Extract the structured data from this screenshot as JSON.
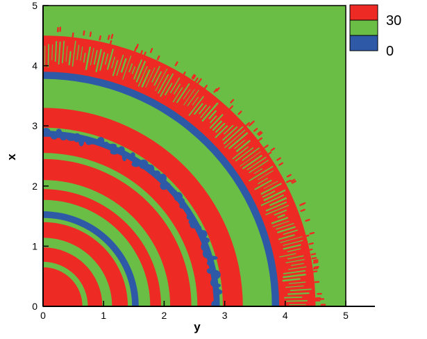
{
  "chart_data": {
    "type": "heatmap",
    "xlabel": "y",
    "ylabel": "x",
    "xlim": [
      0,
      5
    ],
    "ylim": [
      0,
      5
    ],
    "x_ticks": [
      "0",
      "1",
      "2",
      "3",
      "4",
      "5"
    ],
    "y_ticks": [
      "0",
      "1",
      "2",
      "3",
      "4",
      "5"
    ],
    "legend": {
      "placement": "top-right",
      "entries": [
        {
          "label": "30",
          "color": "#ee2a24"
        },
        {
          "label": "",
          "color": "#6abd45"
        },
        {
          "label": "0",
          "color": "#2e59a6"
        }
      ]
    },
    "colors": {
      "high": "#ee2a24",
      "mid": "#6abd45",
      "low": "#2e59a6"
    },
    "rings": [
      {
        "r_inner": 0.0,
        "r_outer": 0.65,
        "level": "high"
      },
      {
        "r_inner": 0.65,
        "r_outer": 0.74,
        "level": "mid"
      },
      {
        "r_inner": 0.74,
        "r_outer": 0.98,
        "level": "high"
      },
      {
        "r_inner": 0.98,
        "r_outer": 1.14,
        "level": "mid"
      },
      {
        "r_inner": 1.14,
        "r_outer": 1.4,
        "level": "high"
      },
      {
        "r_inner": 1.4,
        "r_outer": 1.47,
        "level": "mid"
      },
      {
        "r_inner": 1.47,
        "r_outer": 1.58,
        "level": "low"
      },
      {
        "r_inner": 1.58,
        "r_outer": 1.77,
        "level": "mid"
      },
      {
        "r_inner": 1.77,
        "r_outer": 1.95,
        "level": "high"
      },
      {
        "r_inner": 1.95,
        "r_outer": 2.1,
        "level": "mid"
      },
      {
        "r_inner": 2.1,
        "r_outer": 2.45,
        "level": "high"
      },
      {
        "r_inner": 2.45,
        "r_outer": 2.55,
        "level": "mid"
      },
      {
        "r_inner": 2.55,
        "r_outer": 2.82,
        "level": "high"
      },
      {
        "r_inner": 2.82,
        "r_outer": 2.92,
        "level": "low",
        "irregular": true
      },
      {
        "r_inner": 2.92,
        "r_outer": 2.97,
        "level": "mid"
      },
      {
        "r_inner": 2.97,
        "r_outer": 3.3,
        "level": "high"
      },
      {
        "r_inner": 3.3,
        "r_outer": 3.78,
        "level": "mid"
      },
      {
        "r_inner": 3.78,
        "r_outer": 3.9,
        "level": "low"
      },
      {
        "r_inner": 3.9,
        "r_outer": 4.5,
        "level": "high",
        "fingered": true
      },
      {
        "r_inner": 4.5,
        "r_outer": 7.1,
        "level": "mid"
      }
    ]
  }
}
